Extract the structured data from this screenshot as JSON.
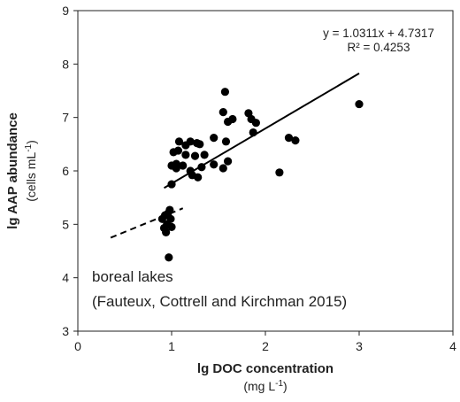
{
  "chart_data": {
    "type": "scatter",
    "title": "",
    "xlabel": "lg DOC concentration",
    "xlabel_unit": "(mg L",
    "xlabel_unit_sup": "-1",
    "xlabel_unit_end": ")",
    "ylabel": "lg AAP abundance",
    "ylabel_unit": "(cells mL",
    "ylabel_unit_sup": "-1",
    "ylabel_unit_end": ")",
    "xlim": [
      0,
      4
    ],
    "ylim": [
      3,
      9
    ],
    "xticks": [
      "0",
      "1",
      "2",
      "3",
      "4"
    ],
    "yticks": [
      "3",
      "4",
      "5",
      "6",
      "7",
      "8",
      "9"
    ],
    "grid": false,
    "legend": "none",
    "marker_color": "#000000",
    "points": [
      [
        0.9,
        5.1
      ],
      [
        0.92,
        4.93
      ],
      [
        0.93,
        5.17
      ],
      [
        0.94,
        4.85
      ],
      [
        0.95,
        5.0
      ],
      [
        0.96,
        5.2
      ],
      [
        0.97,
        4.38
      ],
      [
        0.98,
        5.27
      ],
      [
        0.99,
        5.1
      ],
      [
        1.0,
        4.95
      ],
      [
        1.0,
        5.75
      ],
      [
        1.0,
        6.1
      ],
      [
        1.02,
        6.35
      ],
      [
        1.05,
        6.05
      ],
      [
        1.05,
        6.13
      ],
      [
        1.07,
        6.38
      ],
      [
        1.08,
        6.55
      ],
      [
        1.12,
        6.1
      ],
      [
        1.15,
        6.3
      ],
      [
        1.15,
        6.48
      ],
      [
        1.2,
        6.0
      ],
      [
        1.2,
        6.55
      ],
      [
        1.22,
        5.92
      ],
      [
        1.25,
        6.28
      ],
      [
        1.27,
        6.52
      ],
      [
        1.28,
        5.88
      ],
      [
        1.3,
        6.5
      ],
      [
        1.32,
        6.07
      ],
      [
        1.35,
        6.3
      ],
      [
        1.45,
        6.62
      ],
      [
        1.45,
        6.12
      ],
      [
        1.55,
        7.1
      ],
      [
        1.55,
        6.05
      ],
      [
        1.57,
        7.48
      ],
      [
        1.58,
        6.55
      ],
      [
        1.6,
        6.92
      ],
      [
        1.6,
        6.18
      ],
      [
        1.65,
        6.97
      ],
      [
        1.82,
        7.08
      ],
      [
        1.85,
        6.97
      ],
      [
        1.87,
        6.72
      ],
      [
        1.9,
        6.9
      ],
      [
        2.15,
        5.97
      ],
      [
        2.25,
        6.62
      ],
      [
        2.32,
        6.57
      ],
      [
        3.0,
        7.25
      ]
    ],
    "trendline": {
      "slope": 1.0311,
      "intercept": 4.7317,
      "x_start": 0.92,
      "x_end": 3.0,
      "style": "solid"
    },
    "dashed_line": {
      "points": [
        [
          0.35,
          4.75
        ],
        [
          1.12,
          5.3
        ]
      ],
      "style": "dashed"
    },
    "equation_text": "y = 1.0311x + 4.7317",
    "r2_text": "R² = 0.4253",
    "annotation_line1": "boreal lakes",
    "annotation_line2": "(Fauteux, Cottrell and Kirchman 2015)"
  }
}
